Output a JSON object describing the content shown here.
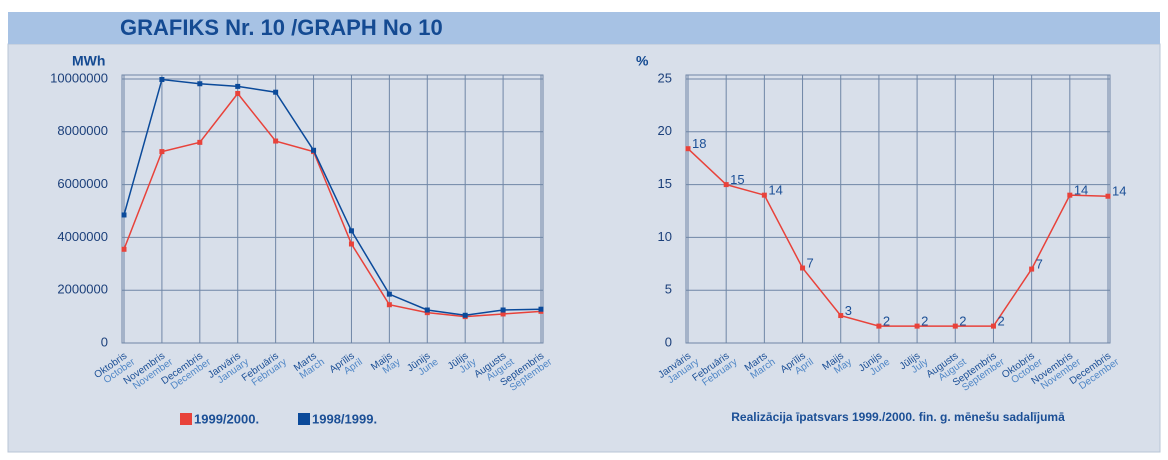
{
  "title": "GRAFIKS Nr. 10 /GRAPH No 10",
  "chart_data": [
    {
      "type": "line",
      "y_label": "MWh",
      "categories": [
        "Oktobris",
        "Novembris",
        "Decembris",
        "Janvāris",
        "Februāris",
        "Marts",
        "Aprīlis",
        "Maijs",
        "Jūnijs",
        "Jūlijs",
        "Augusts",
        "Septembris"
      ],
      "categories_en": [
        "October",
        "November",
        "December",
        "January",
        "February",
        "March",
        "April",
        "May",
        "June",
        "July",
        "August",
        "September"
      ],
      "series": [
        {
          "name": "1999/2000.",
          "color": "#e8423a",
          "values": [
            3550000,
            7250000,
            7600000,
            9450000,
            7650000,
            7250000,
            3750000,
            1450000,
            1150000,
            1000000,
            1100000,
            1200000
          ]
        },
        {
          "name": "1998/1999.",
          "color": "#0b4a9a",
          "values": [
            4850000,
            9980000,
            9820000,
            9720000,
            9500000,
            7300000,
            4250000,
            1850000,
            1250000,
            1050000,
            1250000,
            1280000
          ]
        }
      ],
      "ylim": [
        0,
        10000000
      ],
      "yticks": [
        0,
        2000000,
        4000000,
        6000000,
        8000000,
        10000000
      ],
      "grid": true,
      "legend": "bottom"
    },
    {
      "type": "line",
      "y_label": "%",
      "caption": "Realizācija īpatsvars 1999./2000. fin. g. mēnešu sadalījumā",
      "categories": [
        "Janvāris",
        "Februāris",
        "Marts",
        "Aprīlis",
        "Maijs",
        "Jūnijs",
        "Jūlijs",
        "Augusts",
        "Septembris",
        "Oktobris",
        "Novembris",
        "Decembris"
      ],
      "categories_en": [
        "January",
        "February",
        "March",
        "April",
        "May",
        "June",
        "July",
        "August",
        "September",
        "October",
        "November",
        "December"
      ],
      "values": [
        18.4,
        15,
        14,
        7.1,
        2.6,
        1.6,
        1.6,
        1.6,
        1.6,
        7,
        14,
        13.9
      ],
      "value_labels": [
        "18",
        "15",
        "14",
        "7",
        "3",
        "2",
        "2",
        "2",
        "2",
        "7",
        "14",
        "14"
      ],
      "color": "#e8423a",
      "ylim": [
        0,
        25
      ],
      "yticks": [
        0,
        5,
        10,
        15,
        20,
        25
      ],
      "grid": true
    }
  ]
}
